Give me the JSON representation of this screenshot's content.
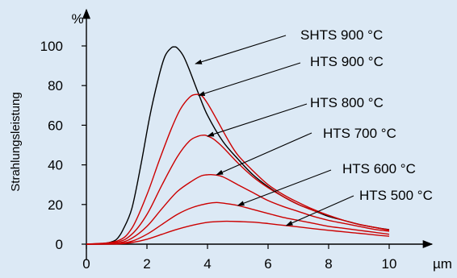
{
  "chart_data": {
    "type": "line",
    "x_unit": "µm",
    "y_unit": "%",
    "ylabel": "Strahlungsleistung",
    "xlim": [
      0,
      10
    ],
    "ylim": [
      0,
      100
    ],
    "x_ticks": [
      "0",
      "2",
      "4",
      "6",
      "8",
      "10"
    ],
    "y_ticks": [
      "0",
      "20",
      "40",
      "60",
      "80",
      "100"
    ],
    "grid": false,
    "series": [
      {
        "name": "SHTS 900 °C",
        "color": "#000000",
        "x": [
          0,
          0.5,
          0.8,
          1.0,
          1.2,
          1.5,
          1.8,
          2.1,
          2.4,
          2.6,
          2.8,
          2.9,
          3.0,
          3.2,
          3.4,
          3.7,
          4.0,
          4.5,
          5.0,
          5.5,
          6.0,
          6.5,
          7.0,
          7.5,
          8.0,
          8.5,
          9.0,
          9.5,
          10.0
        ],
        "y": [
          0,
          0.3,
          1,
          2.5,
          7,
          18,
          40,
          65,
          85,
          95,
          99,
          99.5,
          99,
          95,
          88,
          76,
          65,
          52,
          43,
          35,
          29,
          24,
          20,
          17,
          14,
          12,
          10,
          8.5,
          7.3
        ]
      },
      {
        "name": "HTS 900 °C",
        "color": "#cc0000",
        "x": [
          0,
          1.0,
          1.5,
          2.0,
          2.4,
          2.8,
          3.1,
          3.4,
          3.6,
          3.8,
          4.0,
          4.3,
          4.7,
          5.0,
          5.5,
          6.0,
          6.5,
          7.0,
          7.5,
          8.0,
          8.5,
          9.0,
          9.5,
          10.0
        ],
        "y": [
          0,
          1.5,
          8,
          25,
          42,
          58,
          68,
          74,
          75.5,
          75,
          71,
          63,
          52,
          45,
          37,
          30,
          25,
          21,
          17.5,
          14.5,
          12,
          10,
          8.5,
          7.2
        ]
      },
      {
        "name": "HTS 800 °C",
        "color": "#cc0000",
        "x": [
          0,
          1.0,
          1.5,
          2.0,
          2.5,
          3.0,
          3.4,
          3.7,
          3.9,
          4.0,
          4.2,
          4.5,
          5.0,
          5.5,
          6.0,
          6.5,
          7.0,
          7.5,
          8.0,
          8.5,
          9.0,
          9.5,
          10.0
        ],
        "y": [
          0,
          1,
          5,
          15,
          30,
          44,
          52,
          54.5,
          55,
          54.5,
          53,
          49,
          41,
          34,
          28.5,
          24,
          20,
          17,
          14.5,
          12,
          10,
          8.5,
          7
        ]
      },
      {
        "name": "HTS 700 °C",
        "color": "#cc0000",
        "x": [
          0,
          1.0,
          1.5,
          2.0,
          2.5,
          3.0,
          3.5,
          3.8,
          4.0,
          4.2,
          4.5,
          5.0,
          5.5,
          6.0,
          6.5,
          7.0,
          7.5,
          8.0,
          8.5,
          9.0,
          9.5,
          10.0
        ],
        "y": [
          0,
          0.5,
          3,
          9,
          18,
          26.5,
          32,
          34.5,
          35,
          35,
          34,
          30,
          26,
          22,
          19,
          16.5,
          14,
          12,
          10.5,
          9,
          7.5,
          6.5
        ]
      },
      {
        "name": "HTS 600 °C",
        "color": "#cc0000",
        "x": [
          0,
          1.0,
          1.5,
          2.0,
          2.5,
          3.0,
          3.5,
          4.0,
          4.3,
          4.6,
          5.0,
          5.5,
          6.0,
          6.5,
          7.0,
          7.5,
          8.0,
          8.5,
          9.0,
          9.5,
          10.0
        ],
        "y": [
          0,
          0.3,
          1.5,
          5,
          10,
          15,
          18.5,
          20.5,
          21,
          20.5,
          19.5,
          17.5,
          15.5,
          13.5,
          12,
          10.5,
          9,
          8,
          7,
          6,
          5
        ]
      },
      {
        "name": "HTS 500 °C",
        "color": "#cc0000",
        "x": [
          0,
          1.0,
          1.5,
          2.0,
          2.5,
          3.0,
          3.5,
          4.0,
          4.5,
          4.8,
          5.2,
          5.6,
          6.0,
          6.5,
          7.0,
          7.5,
          8.0,
          8.5,
          9.0,
          9.5,
          10.0
        ],
        "y": [
          0,
          0.1,
          0.8,
          2.5,
          5,
          7.5,
          9.5,
          11,
          11.5,
          11.5,
          11.3,
          11,
          10.4,
          9.5,
          8.7,
          7.8,
          7,
          6.2,
          5.5,
          4.7,
          4
        ]
      }
    ],
    "annotations": [
      {
        "text": "SHTS 900 °C",
        "point": [
          3.6,
          91
        ]
      },
      {
        "text": "HTS 900 °C",
        "point": [
          3.7,
          75
        ]
      },
      {
        "text": "HTS 800 °C",
        "point": [
          4.0,
          54.5
        ]
      },
      {
        "text": "HTS 700 °C",
        "point": [
          4.3,
          35
        ]
      },
      {
        "text": "HTS 600 °C",
        "point": [
          5.0,
          19.5
        ]
      },
      {
        "text": "HTS 500 °C",
        "point": [
          6.6,
          9.4
        ]
      }
    ]
  }
}
